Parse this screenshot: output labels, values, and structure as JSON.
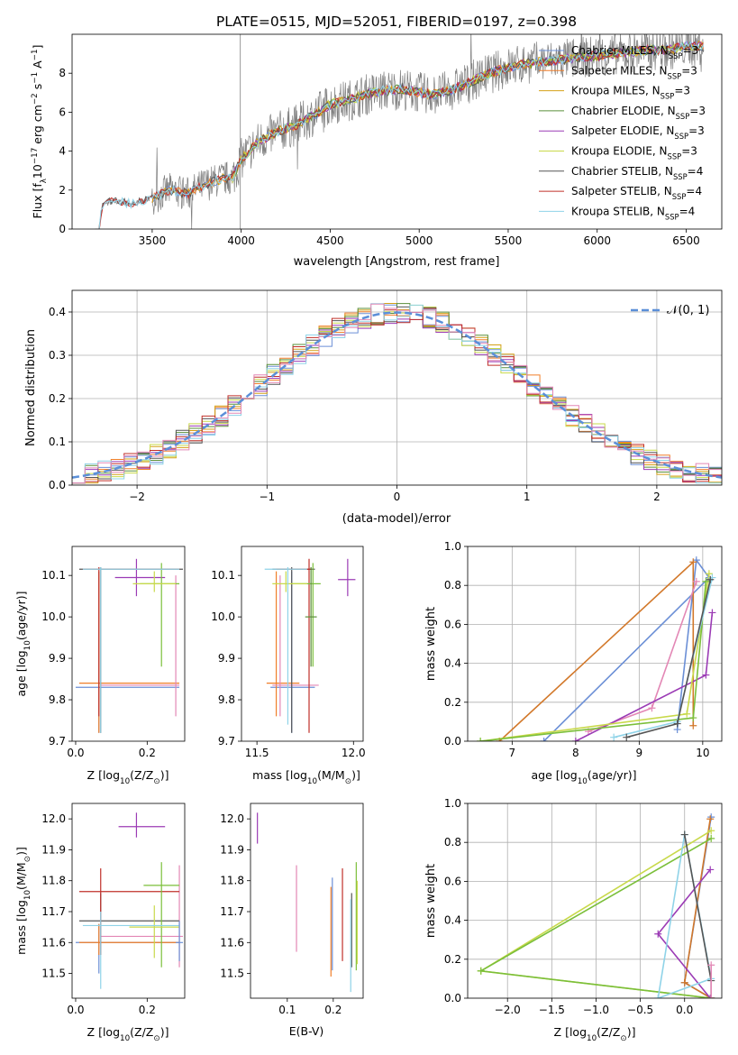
{
  "title": "PLATE=0515, MJD=52051, FIBERID=0197, z=0.398",
  "colors": {
    "chab_miles": "#6b8fd6",
    "salp_miles": "#f07f2a",
    "krou_miles": "#d4a017",
    "chab_elodie": "#5a8f3a",
    "salp_elodie": "#9b3bb5",
    "krou_elodie": "#c8d94a",
    "chab_stelib": "#555555",
    "salp_stelib": "#c0302a",
    "krou_stelib": "#8fd3e8",
    "pink": "#e387b5",
    "orange": "#d2782a",
    "green": "#7bbf3a",
    "gray_spec": "#808080",
    "normal": "#5b8fd8"
  },
  "chart_data": [
    {
      "id": "spectrum",
      "type": "line",
      "xlabel": "wavelength [Angstrom, rest frame]",
      "ylabel": "Flux [f",
      "ylabel_sub": "λ",
      "ylabel_rest": "10",
      "ylabel_exp1": "−17",
      "ylabel_mid": " erg cm",
      "ylabel_exp2": "−2",
      "ylabel_mid2": " s",
      "ylabel_exp3": "−1",
      "ylabel_end": " A",
      "ylabel_exp4": "−1",
      "ylabel_close": "]",
      "xlim": [
        3050,
        6700
      ],
      "ylim": [
        0,
        10
      ],
      "xticks": [
        3500,
        4000,
        4500,
        5000,
        5500,
        6000,
        6500
      ],
      "yticks": [
        0,
        2,
        4,
        6,
        8
      ],
      "continuum": [
        [
          3200,
          0
        ],
        [
          3220,
          1.3
        ],
        [
          3300,
          1.4
        ],
        [
          3400,
          1.3
        ],
        [
          3500,
          1.6
        ],
        [
          3600,
          2.0
        ],
        [
          3700,
          1.8
        ],
        [
          3800,
          2.3
        ],
        [
          3900,
          2.6
        ],
        [
          3950,
          2.6
        ],
        [
          4000,
          3.6
        ],
        [
          4100,
          4.5
        ],
        [
          4200,
          5.0
        ],
        [
          4300,
          5.3
        ],
        [
          4400,
          5.8
        ],
        [
          4500,
          6.4
        ],
        [
          4600,
          6.6
        ],
        [
          4700,
          6.9
        ],
        [
          4800,
          7.1
        ],
        [
          4900,
          7.2
        ],
        [
          5000,
          7.0
        ],
        [
          5100,
          6.9
        ],
        [
          5200,
          7.2
        ],
        [
          5300,
          7.6
        ],
        [
          5400,
          8.0
        ],
        [
          5500,
          8.3
        ],
        [
          5600,
          8.5
        ],
        [
          5700,
          8.6
        ],
        [
          5800,
          8.7
        ],
        [
          5900,
          8.8
        ],
        [
          6000,
          8.9
        ],
        [
          6100,
          9.0
        ],
        [
          6200,
          9.1
        ],
        [
          6300,
          9.2
        ],
        [
          6400,
          9.2
        ],
        [
          6500,
          9.4
        ],
        [
          6600,
          9.4
        ]
      ],
      "legend": [
        {
          "label": "Chabrier MILES, N",
          "sub": "SSP",
          "val": "=3",
          "color": "chab_miles"
        },
        {
          "label": "Salpeter MILES, N",
          "sub": "SSP",
          "val": "=3",
          "color": "salp_miles"
        },
        {
          "label": "Kroupa MILES, N",
          "sub": "SSP",
          "val": "=3",
          "color": "krou_miles"
        },
        {
          "label": "Chabrier ELODIE, N",
          "sub": "SSP",
          "val": "=3",
          "color": "chab_elodie"
        },
        {
          "label": "Salpeter ELODIE, N",
          "sub": "SSP",
          "val": "=3",
          "color": "salp_elodie"
        },
        {
          "label": "Kroupa ELODIE, N",
          "sub": "SSP",
          "val": "=3",
          "color": "krou_elodie"
        },
        {
          "label": "Chabrier STELIB, N",
          "sub": "SSP",
          "val": "=4",
          "color": "chab_stelib"
        },
        {
          "label": "Salpeter STELIB, N",
          "sub": "SSP",
          "val": "=4",
          "color": "salp_stelib"
        },
        {
          "label": "Kroupa STELIB, N",
          "sub": "SSP",
          "val": "=4",
          "color": "krou_stelib"
        }
      ]
    },
    {
      "id": "hist",
      "type": "line",
      "xlabel": "(data-model)/error",
      "ylabel": "Normed distribution",
      "xlim": [
        -2.5,
        2.5
      ],
      "ylim": [
        0,
        0.45
      ],
      "xticks": [
        -2,
        -1,
        0,
        1,
        2
      ],
      "xtick_labels": [
        "−2",
        "−1",
        "0",
        "1",
        "2"
      ],
      "yticks": [
        0.0,
        0.1,
        0.2,
        0.3,
        0.4
      ],
      "ytick_labels": [
        "0.0",
        "0.1",
        "0.2",
        "0.3",
        "0.4"
      ],
      "grid": true,
      "legend_label": "𝒩(0, 1)",
      "bin_width": 0.1,
      "bin_start": -2.5
    },
    {
      "id": "age_z",
      "type": "scatter",
      "xlabel": "Z [log",
      "xlabel_sub": "10",
      "xlabel_rest": "(Z/Z",
      "xlabel_sub2": "⊙",
      "xlabel_end": ")]",
      "ylabel": "age  [log",
      "ylabel_sub": "10",
      "ylabel_rest": "(age/yr)]",
      "xlim": [
        -0.01,
        0.305
      ],
      "ylim": [
        9.7,
        10.17
      ],
      "xticks": [
        0.0,
        0.2
      ],
      "xtick_labels": [
        "0.0",
        "0.2"
      ],
      "yticks": [
        9.7,
        9.8,
        9.9,
        10.0,
        10.1
      ],
      "ytick_labels": [
        "9.7",
        "9.8",
        "9.9",
        "10.0",
        "10.1"
      ]
    },
    {
      "id": "age_mass",
      "type": "scatter",
      "xlabel": "mass [log",
      "xlabel_sub": "10",
      "xlabel_rest": "(M/M",
      "xlabel_sub2": "⊙",
      "xlabel_end": ")]",
      "xlim": [
        11.42,
        12.05
      ],
      "ylim": [
        9.7,
        10.17
      ],
      "xticks": [
        11.5,
        12.0
      ],
      "xtick_labels": [
        "11.5",
        "12.0"
      ],
      "yticks": [
        9.7,
        9.8,
        9.9,
        10.0,
        10.1
      ],
      "ytick_labels": [
        "9.7",
        "9.8",
        "9.9",
        "10.0",
        "10.1"
      ]
    },
    {
      "id": "mw_age",
      "type": "line",
      "xlabel": "age  [log",
      "xlabel_sub": "10",
      "xlabel_rest": "(age/yr)]",
      "ylabel": "mass weight",
      "xlim": [
        6.3,
        10.3
      ],
      "ylim": [
        0,
        1.0
      ],
      "xticks": [
        7,
        8,
        9,
        10
      ],
      "xtick_labels": [
        "7",
        "8",
        "9",
        "10"
      ],
      "yticks": [
        0.0,
        0.2,
        0.4,
        0.6,
        0.8,
        1.0
      ],
      "ytick_labels": [
        "0.0",
        "0.2",
        "0.4",
        "0.6",
        "0.8",
        "1.0"
      ],
      "grid": true
    },
    {
      "id": "mass_z",
      "type": "scatter",
      "xlabel": "Z [log",
      "xlabel_sub": "10",
      "xlabel_rest": "(Z/Z",
      "xlabel_sub2": "⊙",
      "xlabel_end": ")]",
      "ylabel": "mass [log",
      "ylabel_sub": "10",
      "ylabel_rest": "(M/M",
      "ylabel_sub2": "⊙",
      "ylabel_end": ")]",
      "xlim": [
        -0.01,
        0.305
      ],
      "ylim": [
        11.42,
        12.05
      ],
      "xticks": [
        0.0,
        0.2
      ],
      "xtick_labels": [
        "0.0",
        "0.2"
      ],
      "yticks": [
        11.5,
        11.6,
        11.7,
        11.8,
        11.9,
        12.0
      ],
      "ytick_labels": [
        "11.5",
        "11.6",
        "11.7",
        "11.8",
        "11.9",
        "12.0"
      ]
    },
    {
      "id": "mass_ebv",
      "type": "scatter",
      "xlabel": "E(B-V)",
      "xlim": [
        0.02,
        0.265
      ],
      "ylim": [
        11.42,
        12.05
      ],
      "xticks": [
        0.1,
        0.2
      ],
      "xtick_labels": [
        "0.1",
        "0.2"
      ],
      "yticks": [
        11.5,
        11.6,
        11.7,
        11.8,
        11.9,
        12.0
      ],
      "ytick_labels": [
        "11.5",
        "11.6",
        "11.7",
        "11.8",
        "11.9",
        "12.0"
      ]
    },
    {
      "id": "mw_z",
      "type": "line",
      "xlabel": "Z [log",
      "xlabel_sub": "10",
      "xlabel_rest": "(Z/Z",
      "xlabel_sub2": "⊙",
      "xlabel_end": ")]",
      "ylabel": "mass weight",
      "xlim": [
        -2.45,
        0.42
      ],
      "ylim": [
        0,
        1.0
      ],
      "xticks": [
        -2.0,
        -1.5,
        -1.0,
        -0.5,
        0.0
      ],
      "xtick_labels": [
        "−2.0",
        "−1.5",
        "−1.0",
        "−0.5",
        "0.0"
      ],
      "yticks": [
        0.0,
        0.2,
        0.4,
        0.6,
        0.8,
        1.0
      ],
      "ytick_labels": [
        "0.0",
        "0.2",
        "0.4",
        "0.6",
        "0.8",
        "1.0"
      ],
      "grid": true
    }
  ],
  "errorbars_age_z": [
    {
      "c": "chab_miles",
      "x": 0.065,
      "xe": [
        0.0,
        0.29
      ],
      "y": 9.83,
      "ye": [
        9.72,
        10.11
      ]
    },
    {
      "c": "salp_miles",
      "x": 0.065,
      "xe": [
        0.01,
        0.29
      ],
      "y": 9.84,
      "ye": [
        9.72,
        10.11
      ]
    },
    {
      "c": "pink",
      "x": 0.28,
      "xe": [
        0.07,
        0.29
      ],
      "y": 9.835,
      "ye": [
        9.76,
        10.1
      ]
    },
    {
      "c": "chab_stelib",
      "x": 0.07,
      "xe": [
        0.01,
        0.3
      ],
      "y": 10.115,
      "ye": [
        9.72,
        10.12
      ]
    },
    {
      "c": "salp_stelib",
      "x": 0.065,
      "xe": [
        0.02,
        0.29
      ],
      "y": 10.115,
      "ye": [
        9.76,
        10.12
      ]
    },
    {
      "c": "salp_elodie",
      "x": 0.17,
      "xe": [
        0.11,
        0.25
      ],
      "y": 10.095,
      "ye": [
        10.05,
        10.14
      ]
    },
    {
      "c": "green",
      "x": 0.24,
      "xe": [
        0.18,
        0.29
      ],
      "y": 10.08,
      "ye": [
        9.88,
        10.13
      ]
    },
    {
      "c": "krou_elodie",
      "x": 0.22,
      "xe": [
        0.16,
        0.28
      ],
      "y": 10.08,
      "ye": [
        10.06,
        10.11
      ]
    },
    {
      "c": "krou_stelib",
      "x": 0.07,
      "xe": [
        0.02,
        0.29
      ],
      "y": 10.115,
      "ye": [
        9.72,
        10.12
      ]
    }
  ],
  "errorbars_age_mass": [
    {
      "c": "chab_miles",
      "x": 11.68,
      "xe": [
        11.57,
        11.8
      ],
      "y": 9.83,
      "ye": [
        9.72,
        10.11
      ]
    },
    {
      "c": "salp_miles",
      "x": 11.6,
      "xe": [
        11.55,
        11.72
      ],
      "y": 9.84,
      "ye": [
        9.76,
        10.11
      ]
    },
    {
      "c": "pink",
      "x": 11.62,
      "xe": [
        11.58,
        11.82
      ],
      "y": 9.835,
      "ye": [
        9.76,
        10.1
      ]
    },
    {
      "c": "chab_stelib",
      "x": 11.68,
      "xe": [
        11.58,
        11.8
      ],
      "y": 10.115,
      "ye": [
        9.72,
        10.12
      ]
    },
    {
      "c": "salp_stelib",
      "x": 11.77,
      "xe": [
        11.6,
        11.78
      ],
      "y": 10.115,
      "ye": [
        9.72,
        10.14
      ]
    },
    {
      "c": "salp_elodie",
      "x": 11.97,
      "xe": [
        11.92,
        12.01
      ],
      "y": 10.09,
      "ye": [
        10.05,
        10.14
      ]
    },
    {
      "c": "green",
      "x": 11.79,
      "xe": [
        11.68,
        11.83
      ],
      "y": 10.08,
      "ye": [
        9.88,
        10.13
      ]
    },
    {
      "c": "krou_elodie",
      "x": 11.65,
      "xe": [
        11.58,
        11.76
      ],
      "y": 10.08,
      "ye": [
        10.06,
        10.11
      ]
    },
    {
      "c": "krou_stelib",
      "x": 11.66,
      "xe": [
        11.54,
        11.76
      ],
      "y": 10.115,
      "ye": [
        9.74,
        10.12
      ]
    },
    {
      "c": "chab_elodie",
      "x": 11.78,
      "xe": [
        11.75,
        11.81
      ],
      "y": 10.0,
      "ye": [
        9.88,
        10.12
      ]
    }
  ],
  "errorbars_mass_z": [
    {
      "c": "chab_miles",
      "x": 0.065,
      "xe": [
        0.0,
        0.29
      ],
      "y": 11.6,
      "ye": [
        11.5,
        11.66
      ]
    },
    {
      "c": "salp_miles",
      "x": 0.065,
      "xe": [
        0.01,
        0.29
      ],
      "y": 11.6,
      "ye": [
        11.56,
        11.66
      ]
    },
    {
      "c": "pink",
      "x": 0.29,
      "xe": [
        0.07,
        0.3
      ],
      "y": 11.62,
      "ye": [
        11.52,
        11.85
      ]
    },
    {
      "c": "chab_stelib",
      "x": 0.07,
      "xe": [
        0.01,
        0.29
      ],
      "y": 11.67,
      "ye": [
        11.56,
        11.76
      ]
    },
    {
      "c": "salp_stelib",
      "x": 0.07,
      "xe": [
        0.01,
        0.29
      ],
      "y": 11.765,
      "ye": [
        11.56,
        11.84
      ]
    },
    {
      "c": "salp_elodie",
      "x": 0.17,
      "xe": [
        0.12,
        0.25
      ],
      "y": 11.975,
      "ye": [
        11.94,
        12.02
      ]
    },
    {
      "c": "green",
      "x": 0.24,
      "xe": [
        0.19,
        0.29
      ],
      "y": 11.785,
      "ye": [
        11.52,
        11.86
      ]
    },
    {
      "c": "krou_elodie",
      "x": 0.22,
      "xe": [
        0.15,
        0.29
      ],
      "y": 11.65,
      "ye": [
        11.55,
        11.72
      ]
    },
    {
      "c": "krou_stelib",
      "x": 0.07,
      "xe": [
        0.02,
        0.29
      ],
      "y": 11.655,
      "ye": [
        11.45,
        11.7
      ]
    },
    {
      "c": "chab_miles",
      "x": 0.29,
      "xe": [
        0.28,
        0.3
      ],
      "y": 11.6,
      "ye": [
        11.54,
        11.67
      ]
    }
  ],
  "errorbars_mass_ebv": [
    {
      "c": "salp_elodie",
      "x": 0.035,
      "y": 11.97,
      "ye": [
        11.92,
        12.02
      ]
    },
    {
      "c": "pink",
      "x": 0.12,
      "y": 11.71,
      "ye": [
        11.57,
        11.85
      ]
    },
    {
      "c": "chab_miles",
      "x": 0.198,
      "y": 11.65,
      "ye": [
        11.51,
        11.81
      ]
    },
    {
      "c": "salp_miles",
      "x": 0.195,
      "y": 11.6,
      "ye": [
        11.49,
        11.78
      ]
    },
    {
      "c": "salp_stelib",
      "x": 0.22,
      "y": 11.69,
      "ye": [
        11.54,
        11.84
      ]
    },
    {
      "c": "chab_stelib",
      "x": 0.24,
      "y": 11.67,
      "ye": [
        11.52,
        11.76
      ]
    },
    {
      "c": "krou_stelib",
      "x": 0.238,
      "y": 11.6,
      "ye": [
        11.44,
        11.74
      ]
    },
    {
      "c": "green",
      "x": 0.25,
      "y": 11.68,
      "ye": [
        11.51,
        11.86
      ]
    },
    {
      "c": "krou_elodie",
      "x": 0.252,
      "y": 11.66,
      "ye": [
        11.53,
        11.8
      ]
    }
  ],
  "mw_age_lines": [
    {
      "c": "chab_miles",
      "pts": [
        [
          9.6,
          0.06
        ],
        [
          9.9,
          0.93
        ],
        [
          10.1,
          0.84
        ],
        [
          7.5,
          0.0
        ]
      ]
    },
    {
      "c": "orange",
      "pts": [
        [
          6.8,
          0.0
        ],
        [
          9.85,
          0.92
        ],
        [
          9.85,
          0.08
        ]
      ]
    },
    {
      "c": "pink",
      "pts": [
        [
          9.9,
          0.82
        ],
        [
          9.2,
          0.17
        ],
        [
          8.2,
          0.05
        ]
      ]
    },
    {
      "c": "salp_elodie",
      "pts": [
        [
          10.15,
          0.66
        ],
        [
          10.05,
          0.34
        ],
        [
          8.0,
          0.0
        ]
      ]
    },
    {
      "c": "krou_elodie",
      "pts": [
        [
          10.1,
          0.86
        ],
        [
          9.75,
          0.14
        ],
        [
          6.5,
          0.0
        ]
      ]
    },
    {
      "c": "green",
      "pts": [
        [
          10.05,
          0.82
        ],
        [
          9.85,
          0.12
        ],
        [
          6.5,
          0.0
        ]
      ]
    },
    {
      "c": "krou_stelib",
      "pts": [
        [
          10.15,
          0.84
        ],
        [
          9.6,
          0.1
        ],
        [
          8.6,
          0.02
        ]
      ]
    },
    {
      "c": "chab_stelib",
      "pts": [
        [
          10.12,
          0.83
        ],
        [
          9.6,
          0.09
        ],
        [
          8.8,
          0.02
        ]
      ]
    }
  ],
  "mw_z_lines": [
    {
      "c": "chab_miles",
      "pts": [
        [
          0.3,
          0.93
        ],
        [
          0.0,
          0.08
        ],
        [
          0.3,
          0.0
        ]
      ]
    },
    {
      "c": "orange",
      "pts": [
        [
          0.29,
          0.92
        ],
        [
          0.0,
          0.08
        ],
        [
          0.3,
          0.0
        ]
      ]
    },
    {
      "c": "salp_elodie",
      "pts": [
        [
          0.29,
          0.66
        ],
        [
          -0.3,
          0.33
        ],
        [
          0.29,
          0.0
        ]
      ]
    },
    {
      "c": "krou_elodie",
      "pts": [
        [
          0.3,
          0.86
        ],
        [
          -2.3,
          0.14
        ],
        [
          0.3,
          0.0
        ]
      ]
    },
    {
      "c": "green",
      "pts": [
        [
          0.3,
          0.82
        ],
        [
          -2.3,
          0.14
        ],
        [
          0.3,
          0.0
        ]
      ]
    },
    {
      "c": "krou_stelib",
      "pts": [
        [
          0.0,
          0.84
        ],
        [
          0.3,
          0.1
        ],
        [
          -0.3,
          0.0
        ],
        [
          0.0,
          0.84
        ]
      ]
    },
    {
      "c": "chab_stelib",
      "pts": [
        [
          0.0,
          0.84
        ],
        [
          0.3,
          0.09
        ],
        [
          0.3,
          0.0
        ]
      ]
    },
    {
      "c": "pink",
      "pts": [
        [
          0.3,
          0.17
        ],
        [
          0.3,
          0.0
        ]
      ]
    }
  ]
}
